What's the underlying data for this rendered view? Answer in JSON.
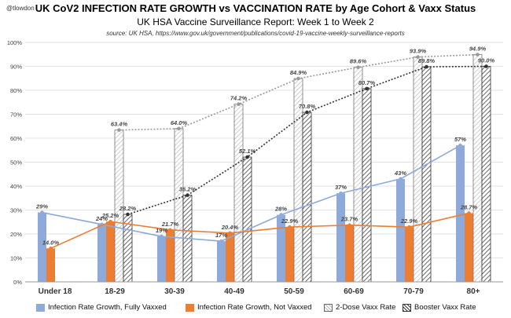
{
  "header": {
    "handle": "@tlowdon",
    "title": "UK CoV2 INFECTION RATE GROWTH vs VACCINATION RATE by Age Cohort & Vaxx Status",
    "subtitle": "UK HSA Vaccine Surveillance Report: Week 1 to Week 2",
    "source": "source: UK HSA, https://www.gov.uk/government/publications/covid-19-vaccine-weekly-surveillance-reports"
  },
  "colors": {
    "fully_vaxxed": "#8eaadb",
    "not_vaxxed": "#ed7d31",
    "grid": "#d9d9d9",
    "trend_gray": "#999999",
    "trend_dark": "#333333"
  },
  "chart_data": {
    "type": "bar",
    "categories": [
      "Under 18",
      "18-29",
      "30-39",
      "40-49",
      "50-59",
      "60-69",
      "70-79",
      "80+"
    ],
    "ylim": [
      0,
      100
    ],
    "yticks": [
      "0%",
      "10%",
      "20%",
      "30%",
      "40%",
      "50%",
      "60%",
      "70%",
      "80%",
      "90%",
      "100%"
    ],
    "grid": true,
    "legend_position": "bottom",
    "series": [
      {
        "name": "Infection Rate Growth, Fully Vaxxed",
        "values": [
          29,
          24,
          19,
          17,
          28,
          37,
          43,
          57
        ],
        "labels": [
          "29%",
          "24%",
          "19%",
          "17%",
          "28%",
          "37%",
          "43%",
          "57%"
        ]
      },
      {
        "name": "Infection Rate Growth, Not Vaxxed",
        "values": [
          14.0,
          25.2,
          21.7,
          20.4,
          22.9,
          23.7,
          22.9,
          28.7
        ],
        "labels": [
          "14.0%",
          "25.2%",
          "21.7%",
          "20.4%",
          "22.9%",
          "23.7%",
          "22.9%",
          "28.7%"
        ]
      },
      {
        "name": "2-Dose Vaxx Rate",
        "values": [
          null,
          63.4,
          64.0,
          74.2,
          84.9,
          89.6,
          93.9,
          94.9
        ],
        "labels": [
          "",
          "63.4%",
          "64.0%",
          "74.2%",
          "84.9%",
          "89.6%",
          "93.9%",
          "94.9%"
        ]
      },
      {
        "name": "Booster Vaxx Rate",
        "values": [
          null,
          28.2,
          36.2,
          52.1,
          70.8,
          80.7,
          89.8,
          90.0
        ],
        "labels": [
          "",
          "28.2%",
          "36.2%",
          "52.1%",
          "70.8%",
          "80.7%",
          "89.8%",
          "90.0%"
        ]
      }
    ]
  }
}
